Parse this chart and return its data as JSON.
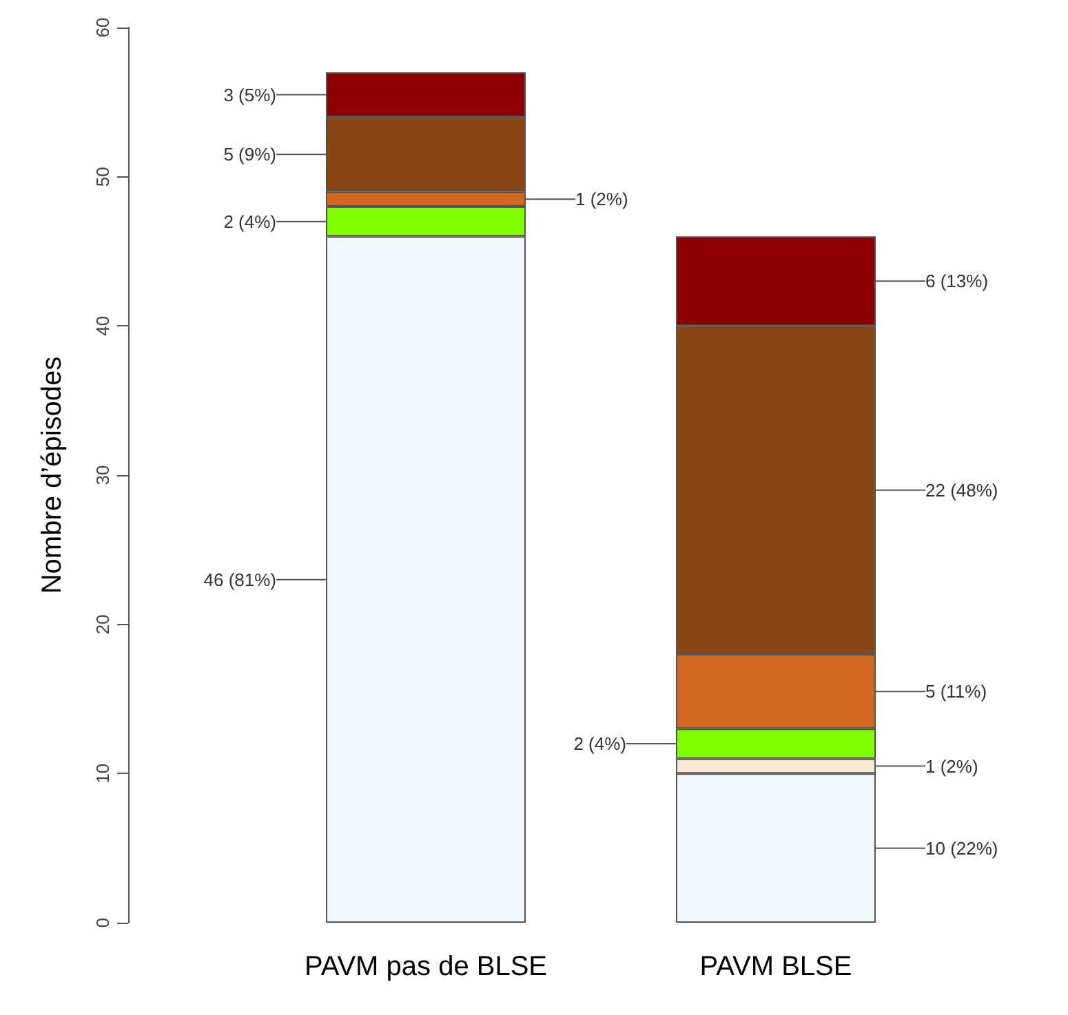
{
  "chart_data": {
    "type": "bar",
    "stacked": true,
    "ylabel": "Nombre d’épisodes",
    "categories": [
      "PAVM pas de BLSE",
      "PAVM BLSE"
    ],
    "series": [
      {
        "color": "#f0f8ff",
        "values": [
          46,
          10
        ],
        "value_labels": [
          "46 (81%)",
          "10 (22%)"
        ]
      },
      {
        "color": "#faebd7",
        "values": [
          null,
          1
        ],
        "value_labels": [
          null,
          "1 (2%)"
        ]
      },
      {
        "color": "#7fff00",
        "values": [
          2,
          2
        ],
        "value_labels": [
          "2 (4%)",
          "2 (4%)"
        ]
      },
      {
        "color": "#d2691e",
        "values": [
          1,
          5
        ],
        "value_labels": [
          "1 (2%)",
          "5 (11%)"
        ]
      },
      {
        "color": "#8b4513",
        "values": [
          5,
          22
        ],
        "value_labels": [
          "5 (9%)",
          "22 (48%)"
        ]
      },
      {
        "color": "#8b0000",
        "values": [
          3,
          6
        ],
        "value_labels": [
          "3 (5%)",
          "6 (13%)"
        ]
      }
    ],
    "ylim": [
      0,
      60
    ],
    "yticks": [
      0,
      10,
      20,
      30,
      40,
      50,
      60
    ],
    "grid": false
  }
}
